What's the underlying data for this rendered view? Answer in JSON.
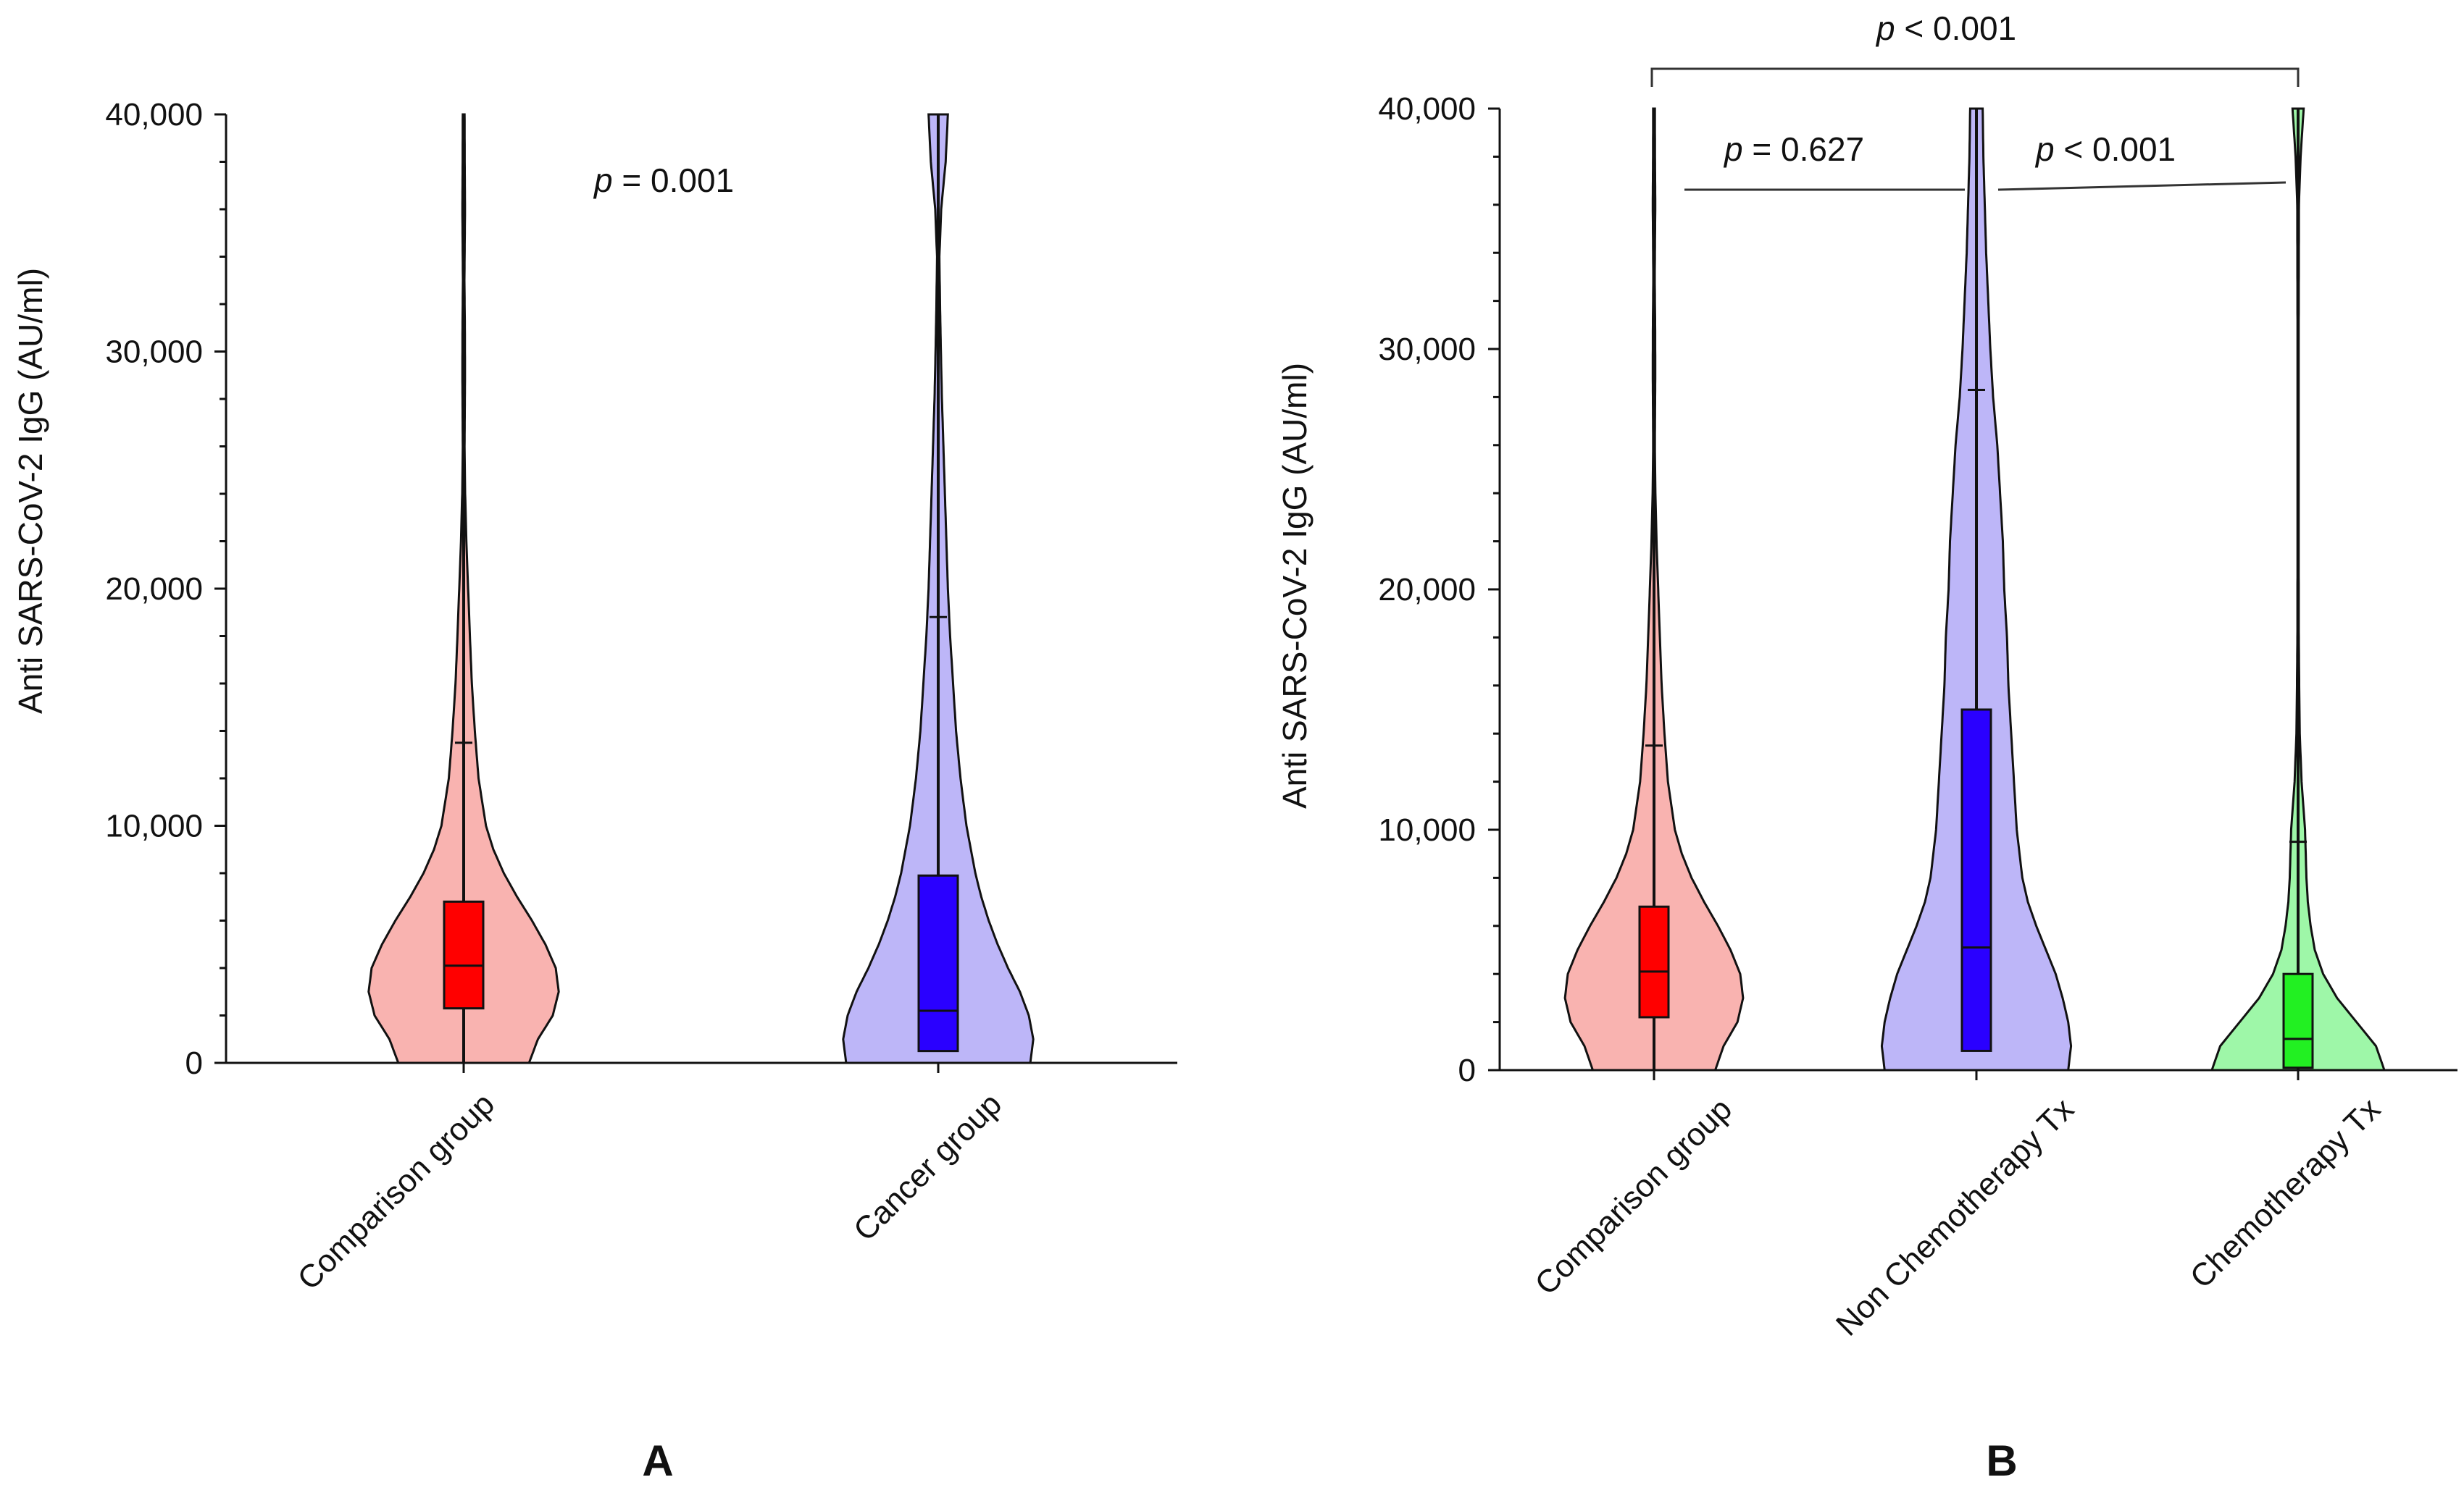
{
  "chart_data": [
    {
      "type": "violin",
      "panel_label": "A",
      "ylabel": "Anti SARS-CoV-2 IgG (AU/ml)",
      "ylim": [
        0,
        40000
      ],
      "yticks": [
        0,
        10000,
        20000,
        30000,
        40000
      ],
      "ytick_labels": [
        "0",
        "10,000",
        "20,000",
        "30,000",
        "40,000"
      ],
      "categories": [
        "Comparison group",
        "Cancer group"
      ],
      "series": [
        {
          "name": "Comparison group",
          "fill": "#f9b3b0",
          "box_color": "#ff0000",
          "min": 0,
          "q1": 2300,
          "median": 4100,
          "q3": 6800,
          "whisker_high": 13500,
          "max": 40000,
          "density": [
            [
              0,
              0.44
            ],
            [
              1000,
              0.5
            ],
            [
              2000,
              0.6
            ],
            [
              3000,
              0.64
            ],
            [
              4000,
              0.62
            ],
            [
              5000,
              0.55
            ],
            [
              6000,
              0.46
            ],
            [
              7000,
              0.36
            ],
            [
              8000,
              0.27
            ],
            [
              9000,
              0.2
            ],
            [
              10000,
              0.15
            ],
            [
              12000,
              0.1
            ],
            [
              14000,
              0.075
            ],
            [
              16000,
              0.055
            ],
            [
              18000,
              0.042
            ],
            [
              20000,
              0.03
            ],
            [
              22000,
              0.018
            ],
            [
              24000,
              0.01
            ],
            [
              26000,
              0.006
            ],
            [
              29000,
              0.009
            ],
            [
              31000,
              0.008
            ],
            [
              33000,
              0.005
            ],
            [
              36000,
              0.009
            ],
            [
              38000,
              0.007
            ],
            [
              40000,
              0.006
            ]
          ]
        },
        {
          "name": "Cancer group",
          "fill": "#bdb6f8",
          "box_color": "#2a00ff",
          "min": 500,
          "q1": 500,
          "median": 2200,
          "q3": 7900,
          "whisker_high": 18800,
          "max": 40000,
          "density": [
            [
              0,
              0.62
            ],
            [
              1000,
              0.64
            ],
            [
              2000,
              0.61
            ],
            [
              3000,
              0.55
            ],
            [
              4000,
              0.47
            ],
            [
              5000,
              0.4
            ],
            [
              6000,
              0.34
            ],
            [
              7000,
              0.29
            ],
            [
              8000,
              0.25
            ],
            [
              10000,
              0.19
            ],
            [
              12000,
              0.15
            ],
            [
              14000,
              0.12
            ],
            [
              16000,
              0.1
            ],
            [
              18000,
              0.08
            ],
            [
              20000,
              0.065
            ],
            [
              22000,
              0.055
            ],
            [
              24000,
              0.045
            ],
            [
              26000,
              0.035
            ],
            [
              28000,
              0.025
            ],
            [
              30000,
              0.018
            ],
            [
              32000,
              0.012
            ],
            [
              34000,
              0.008
            ],
            [
              36000,
              0.02
            ],
            [
              38000,
              0.05
            ],
            [
              40000,
              0.065
            ]
          ]
        }
      ],
      "annotations": [
        {
          "prefix": "p",
          "text": " = 0.001"
        }
      ]
    },
    {
      "type": "violin",
      "panel_label": "B",
      "ylabel": "Anti SARS-CoV-2 IgG (AU/ml)",
      "ylim": [
        0,
        40000
      ],
      "yticks": [
        0,
        10000,
        20000,
        30000,
        40000
      ],
      "ytick_labels": [
        "0",
        "10,000",
        "20,000",
        "30,000",
        "40,000"
      ],
      "categories": [
        "Comparison group",
        "Non Chemotherapy Tx",
        "Chemotherapy Tx"
      ],
      "series": [
        {
          "name": "Comparison group",
          "fill": "#f9b3b0",
          "box_color": "#ff0000",
          "min": 0,
          "q1": 2200,
          "median": 4100,
          "q3": 6800,
          "whisker_high": 13500,
          "max": 40000,
          "density": [
            [
              0,
              0.44
            ],
            [
              1000,
              0.5
            ],
            [
              2000,
              0.6
            ],
            [
              3000,
              0.64
            ],
            [
              4000,
              0.62
            ],
            [
              5000,
              0.55
            ],
            [
              6000,
              0.46
            ],
            [
              7000,
              0.36
            ],
            [
              8000,
              0.27
            ],
            [
              9000,
              0.2
            ],
            [
              10000,
              0.15
            ],
            [
              12000,
              0.1
            ],
            [
              14000,
              0.075
            ],
            [
              16000,
              0.055
            ],
            [
              18000,
              0.042
            ],
            [
              20000,
              0.03
            ],
            [
              22000,
              0.018
            ],
            [
              24000,
              0.01
            ],
            [
              26000,
              0.006
            ],
            [
              29000,
              0.009
            ],
            [
              31000,
              0.008
            ],
            [
              33000,
              0.005
            ],
            [
              36000,
              0.009
            ],
            [
              38000,
              0.007
            ],
            [
              40000,
              0.006
            ]
          ]
        },
        {
          "name": "Non Chemotherapy Tx",
          "fill": "#bdb6f8",
          "box_color": "#2a00ff",
          "min": 800,
          "q1": 800,
          "median": 5100,
          "q3": 15000,
          "whisker_high": 28300,
          "max": 40000,
          "density": [
            [
              0,
              0.66
            ],
            [
              1000,
              0.68
            ],
            [
              2000,
              0.66
            ],
            [
              3000,
              0.62
            ],
            [
              4000,
              0.57
            ],
            [
              5000,
              0.5
            ],
            [
              6000,
              0.43
            ],
            [
              7000,
              0.37
            ],
            [
              8000,
              0.33
            ],
            [
              10000,
              0.29
            ],
            [
              12000,
              0.27
            ],
            [
              14000,
              0.25
            ],
            [
              16000,
              0.23
            ],
            [
              18000,
              0.22
            ],
            [
              20000,
              0.2
            ],
            [
              22000,
              0.19
            ],
            [
              24000,
              0.17
            ],
            [
              26000,
              0.15
            ],
            [
              28000,
              0.12
            ],
            [
              30000,
              0.1
            ],
            [
              32000,
              0.085
            ],
            [
              34000,
              0.07
            ],
            [
              36000,
              0.06
            ],
            [
              38000,
              0.05
            ],
            [
              40000,
              0.045
            ]
          ]
        },
        {
          "name": "Chemotherapy Tx",
          "fill": "#9ef7a8",
          "box_color": "#22f022",
          "min": 0,
          "q1": 100,
          "median": 1300,
          "q3": 4000,
          "whisker_high": 9500,
          "max": 40000,
          "density": [
            [
              0,
              0.62
            ],
            [
              1000,
              0.56
            ],
            [
              2000,
              0.42
            ],
            [
              3000,
              0.28
            ],
            [
              4000,
              0.18
            ],
            [
              5000,
              0.12
            ],
            [
              6000,
              0.09
            ],
            [
              7000,
              0.07
            ],
            [
              8000,
              0.06
            ],
            [
              10000,
              0.05
            ],
            [
              12000,
              0.025
            ],
            [
              14000,
              0.012
            ],
            [
              16000,
              0.008
            ],
            [
              18000,
              0.005
            ],
            [
              22000,
              0.004
            ],
            [
              30000,
              0.004
            ],
            [
              36000,
              0.006
            ],
            [
              38000,
              0.018
            ],
            [
              40000,
              0.04
            ]
          ]
        }
      ],
      "annotations": [
        {
          "prefix": "p",
          "text": " < 0.001"
        },
        {
          "prefix": "p",
          "text": " = 0.627"
        },
        {
          "prefix": "p",
          "text": " < 0.001"
        }
      ]
    }
  ]
}
